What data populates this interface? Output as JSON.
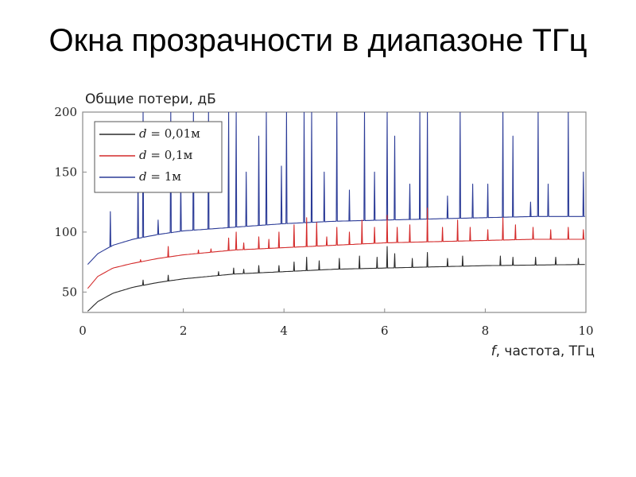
{
  "slide": {
    "title": "Окна прозрачности в диапазоне ТГц"
  },
  "chart_data": {
    "type": "line",
    "title": "",
    "ylabel": "Общие потери, дБ",
    "xlabel_var": "f",
    "xlabel": ", частота, ТГц",
    "xlim": [
      0,
      10
    ],
    "ylim": [
      33,
      200
    ],
    "x_ticks": [
      "0",
      "2",
      "4",
      "6",
      "8",
      "10"
    ],
    "y_ticks": [
      "50",
      "100",
      "150",
      "200"
    ],
    "grid": false,
    "legend_position": "top-left",
    "series": [
      {
        "name_var": "d",
        "name": " = 0,01м",
        "color": "#2b2b2b",
        "baseline": [
          [
            0.1,
            34
          ],
          [
            0.3,
            42
          ],
          [
            0.6,
            49
          ],
          [
            1.0,
            54
          ],
          [
            1.5,
            58
          ],
          [
            2.0,
            61
          ],
          [
            3.0,
            65
          ],
          [
            4.0,
            67
          ],
          [
            5.0,
            69
          ],
          [
            6.0,
            70
          ],
          [
            7.0,
            71
          ],
          [
            8.0,
            72
          ],
          [
            9.0,
            72.5
          ],
          [
            10.0,
            73
          ]
        ],
        "peaks": [
          [
            1.2,
            60
          ],
          [
            1.7,
            64
          ],
          [
            2.7,
            67
          ],
          [
            3.0,
            70
          ],
          [
            3.2,
            69
          ],
          [
            3.5,
            72
          ],
          [
            3.9,
            72
          ],
          [
            4.2,
            75
          ],
          [
            4.45,
            79
          ],
          [
            4.7,
            76
          ],
          [
            5.1,
            78
          ],
          [
            5.5,
            80
          ],
          [
            5.85,
            79
          ],
          [
            6.05,
            88
          ],
          [
            6.2,
            82
          ],
          [
            6.55,
            78
          ],
          [
            6.85,
            83
          ],
          [
            7.25,
            78
          ],
          [
            7.55,
            80
          ],
          [
            8.3,
            80
          ],
          [
            8.55,
            79
          ],
          [
            9.0,
            79
          ],
          [
            9.4,
            79
          ],
          [
            9.85,
            78
          ]
        ]
      },
      {
        "name_var": "d",
        "name": " = 0,1м",
        "color": "#d42a2a",
        "baseline": [
          [
            0.1,
            53
          ],
          [
            0.3,
            63
          ],
          [
            0.6,
            70
          ],
          [
            1.0,
            74
          ],
          [
            1.5,
            78
          ],
          [
            2.0,
            81
          ],
          [
            3.0,
            85
          ],
          [
            4.0,
            87
          ],
          [
            5.0,
            89
          ],
          [
            6.0,
            91
          ],
          [
            7.0,
            92
          ],
          [
            8.0,
            93
          ],
          [
            9.0,
            94
          ],
          [
            10.0,
            94
          ]
        ],
        "peaks": [
          [
            1.15,
            77
          ],
          [
            1.7,
            88
          ],
          [
            2.3,
            85
          ],
          [
            2.55,
            86
          ],
          [
            2.9,
            95
          ],
          [
            3.05,
            100
          ],
          [
            3.2,
            91
          ],
          [
            3.5,
            96
          ],
          [
            3.7,
            94
          ],
          [
            3.9,
            100
          ],
          [
            4.2,
            106
          ],
          [
            4.45,
            112
          ],
          [
            4.65,
            108
          ],
          [
            4.85,
            96
          ],
          [
            5.05,
            104
          ],
          [
            5.3,
            100
          ],
          [
            5.55,
            110
          ],
          [
            5.8,
            104
          ],
          [
            6.05,
            114
          ],
          [
            6.25,
            104
          ],
          [
            6.5,
            106
          ],
          [
            6.85,
            120
          ],
          [
            7.15,
            104
          ],
          [
            7.45,
            110
          ],
          [
            7.7,
            104
          ],
          [
            8.05,
            102
          ],
          [
            8.35,
            112
          ],
          [
            8.6,
            106
          ],
          [
            8.95,
            104
          ],
          [
            9.3,
            102
          ],
          [
            9.65,
            104
          ],
          [
            9.95,
            102
          ]
        ]
      },
      {
        "name_var": "d",
        "name": " = 1м",
        "color": "#2b3b97",
        "baseline": [
          [
            0.1,
            73
          ],
          [
            0.3,
            82
          ],
          [
            0.6,
            89
          ],
          [
            1.0,
            94
          ],
          [
            1.5,
            98
          ],
          [
            2.0,
            101
          ],
          [
            3.0,
            104
          ],
          [
            4.0,
            107
          ],
          [
            5.0,
            109
          ],
          [
            6.0,
            110
          ],
          [
            7.0,
            111
          ],
          [
            8.0,
            112
          ],
          [
            9.0,
            113
          ],
          [
            10.0,
            113
          ]
        ],
        "peaks": [
          [
            0.55,
            117
          ],
          [
            1.1,
            150
          ],
          [
            1.2,
            200
          ],
          [
            1.5,
            110
          ],
          [
            1.75,
            200
          ],
          [
            1.95,
            145
          ],
          [
            2.2,
            200
          ],
          [
            2.5,
            200
          ],
          [
            2.9,
            200
          ],
          [
            3.05,
            200
          ],
          [
            3.25,
            150
          ],
          [
            3.5,
            180
          ],
          [
            3.65,
            200
          ],
          [
            3.95,
            155
          ],
          [
            4.05,
            200
          ],
          [
            4.4,
            200
          ],
          [
            4.55,
            200
          ],
          [
            4.8,
            150
          ],
          [
            5.05,
            200
          ],
          [
            5.3,
            135
          ],
          [
            5.6,
            200
          ],
          [
            5.8,
            150
          ],
          [
            6.05,
            200
          ],
          [
            6.2,
            180
          ],
          [
            6.5,
            140
          ],
          [
            6.7,
            200
          ],
          [
            6.85,
            200
          ],
          [
            7.25,
            130
          ],
          [
            7.5,
            200
          ],
          [
            7.75,
            140
          ],
          [
            8.05,
            140
          ],
          [
            8.35,
            200
          ],
          [
            8.55,
            180
          ],
          [
            8.9,
            125
          ],
          [
            9.05,
            200
          ],
          [
            9.25,
            140
          ],
          [
            9.65,
            200
          ],
          [
            9.95,
            150
          ]
        ]
      }
    ]
  }
}
